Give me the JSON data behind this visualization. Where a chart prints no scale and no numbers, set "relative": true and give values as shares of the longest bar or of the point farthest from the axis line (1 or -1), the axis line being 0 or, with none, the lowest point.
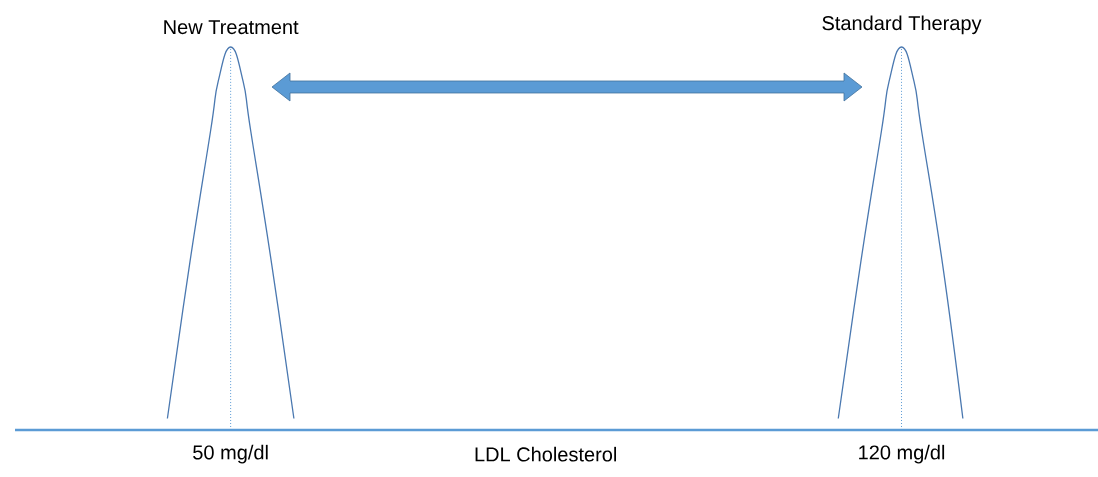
{
  "chart_data": {
    "type": "line",
    "relative": true,
    "xlabel": "LDL Cholesterol",
    "xlim": [
      27.5,
      140.5
    ],
    "xticks": [
      {
        "value": 50,
        "label": "50 mg/dl"
      },
      {
        "value": 120,
        "label": "120 mg/dl"
      }
    ],
    "series": [
      {
        "name": "New Treatment",
        "color": "#4a78b0",
        "x": [
          43.4,
          45.7,
          47.9,
          48.7,
          50,
          51.3,
          52.1,
          54.3,
          56.6
        ],
        "values": [
          0.03,
          0.43,
          0.78,
          0.91,
          1,
          0.91,
          0.78,
          0.43,
          0.03
        ]
      },
      {
        "name": "Standard Therapy",
        "color": "#4a78b0",
        "x": [
          113.4,
          115.7,
          117.9,
          118.7,
          120,
          121.3,
          122.1,
          124.3,
          126.4
        ],
        "values": [
          0.03,
          0.43,
          0.78,
          0.91,
          1,
          0.91,
          0.78,
          0.43,
          0.03
        ]
      }
    ],
    "ref_lines": [
      {
        "axis": "x",
        "value": 50,
        "color": "#5b9bd5",
        "line_style": "dotted"
      },
      {
        "axis": "x",
        "value": 120,
        "color": "#5b9bd5",
        "line_style": "dotted"
      }
    ],
    "marker": "none",
    "line_style": "solid"
  }
}
